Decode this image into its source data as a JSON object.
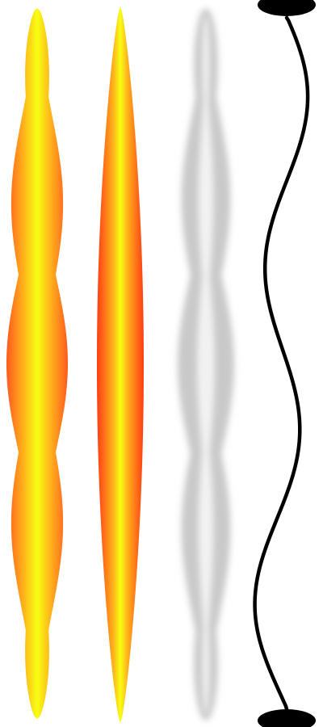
{
  "figure": {
    "description_items": [
      {
        "id": "standing-wave-profile",
        "style": "gradient"
      },
      {
        "id": "fundamental-mode-profile",
        "style": "gradient"
      },
      {
        "id": "standing-wave-envelope",
        "style": "blurred-gray"
      },
      {
        "id": "vibrating-string",
        "style": "line"
      }
    ],
    "colors": {
      "glow_center": "#f7ff12",
      "glow_mid": "#ffb21c",
      "glow_edge": "#ff5a1f",
      "fundamental_edge": "#ff3c14",
      "gray_shape": "#c9c9c9",
      "gray_core": "#f4f4f4",
      "string": "#000000",
      "anchors": "#000000"
    }
  }
}
